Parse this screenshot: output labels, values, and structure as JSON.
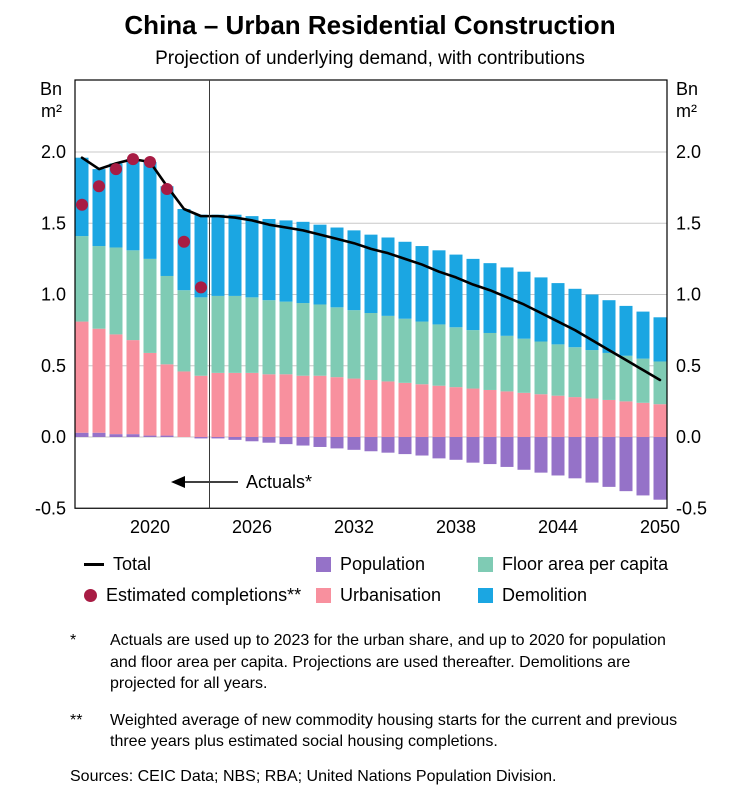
{
  "page": {
    "title": "China – Urban Residential Construction",
    "subtitle": "Projection of underlying demand, with contributions"
  },
  "axis": {
    "unit_line1": "Bn",
    "unit_line2": "m²"
  },
  "annotation": {
    "label": "Actuals*"
  },
  "legend": {
    "rows": [
      [
        {
          "type": "line",
          "color": "#000000",
          "label": "Total"
        },
        {
          "type": "square",
          "color": "#9572C8",
          "label": "Population"
        },
        {
          "type": "square",
          "color": "#7FCBB4",
          "label": "Floor area per capita"
        }
      ],
      [
        {
          "type": "dot",
          "color": "#A81C44",
          "label": "Estimated completions**"
        },
        {
          "type": "square",
          "color": "#F8909E",
          "label": "Urbanisation"
        },
        {
          "type": "square",
          "color": "#1BA6E2",
          "label": "Demolition"
        }
      ]
    ]
  },
  "footnotes": [
    {
      "marker": "*",
      "text": "Actuals are used up to 2023 for the urban share, and up to 2020 for population and floor area per capita. Projections are used thereafter. Demolitions are projected for all years."
    },
    {
      "marker": "**",
      "text": "Weighted average of new commodity housing starts for the current and previous three years plus estimated social housing completions."
    }
  ],
  "sources": "Sources: CEIC Data; NBS; RBA; United Nations Population Division.",
  "chart_data": {
    "type": "bar",
    "subtype": "stacked-bar-with-line-and-points",
    "title": "China – Urban Residential Construction",
    "subtitle": "Projection of underlying demand, with contributions",
    "ylabel": "Bn m²",
    "ylim": [
      -0.5,
      2.5
    ],
    "yticks": [
      -0.5,
      0.0,
      0.5,
      1.0,
      1.5,
      2.0
    ],
    "ytick_labels": [
      "-0.5",
      "0.0",
      "0.5",
      "1.0",
      "1.5",
      "2.0"
    ],
    "xticks": [
      2020,
      2026,
      2032,
      2038,
      2044,
      2050
    ],
    "divider_x": 2023.5,
    "grid": true,
    "legend_position": "bottom",
    "x": [
      2016,
      2017,
      2018,
      2019,
      2020,
      2021,
      2022,
      2023,
      2024,
      2025,
      2026,
      2027,
      2028,
      2029,
      2030,
      2031,
      2032,
      2033,
      2034,
      2035,
      2036,
      2037,
      2038,
      2039,
      2040,
      2041,
      2042,
      2043,
      2044,
      2045,
      2046,
      2047,
      2048,
      2049,
      2050
    ],
    "series": [
      {
        "name": "Population",
        "color": "#9572C8",
        "values": [
          0.03,
          0.03,
          0.02,
          0.02,
          0.01,
          0.01,
          0.0,
          -0.01,
          -0.01,
          -0.02,
          -0.03,
          -0.04,
          -0.05,
          -0.06,
          -0.07,
          -0.08,
          -0.09,
          -0.1,
          -0.11,
          -0.12,
          -0.13,
          -0.15,
          -0.16,
          -0.18,
          -0.19,
          -0.21,
          -0.23,
          -0.25,
          -0.27,
          -0.29,
          -0.32,
          -0.35,
          -0.38,
          -0.41,
          -0.44
        ]
      },
      {
        "name": "Urbanisation",
        "color": "#F8909E",
        "values": [
          0.78,
          0.73,
          0.7,
          0.66,
          0.58,
          0.5,
          0.46,
          0.43,
          0.45,
          0.45,
          0.45,
          0.44,
          0.44,
          0.43,
          0.43,
          0.42,
          0.41,
          0.4,
          0.39,
          0.38,
          0.37,
          0.36,
          0.35,
          0.34,
          0.33,
          0.32,
          0.31,
          0.3,
          0.29,
          0.28,
          0.27,
          0.26,
          0.25,
          0.24,
          0.23
        ]
      },
      {
        "name": "Floor area per capita",
        "color": "#7FCBB4",
        "values": [
          0.6,
          0.58,
          0.61,
          0.63,
          0.66,
          0.62,
          0.57,
          0.55,
          0.54,
          0.54,
          0.53,
          0.52,
          0.51,
          0.51,
          0.5,
          0.49,
          0.48,
          0.47,
          0.46,
          0.45,
          0.44,
          0.43,
          0.42,
          0.41,
          0.4,
          0.39,
          0.38,
          0.37,
          0.36,
          0.35,
          0.34,
          0.33,
          0.32,
          0.31,
          0.3
        ]
      },
      {
        "name": "Demolition",
        "color": "#1BA6E2",
        "values": [
          0.55,
          0.54,
          0.59,
          0.64,
          0.68,
          0.63,
          0.57,
          0.58,
          0.57,
          0.57,
          0.57,
          0.57,
          0.57,
          0.57,
          0.56,
          0.56,
          0.56,
          0.55,
          0.55,
          0.54,
          0.53,
          0.52,
          0.51,
          0.5,
          0.49,
          0.48,
          0.47,
          0.45,
          0.43,
          0.41,
          0.39,
          0.37,
          0.35,
          0.33,
          0.31
        ]
      }
    ],
    "line_series": {
      "name": "Total",
      "color": "#000000",
      "values": [
        1.96,
        1.88,
        1.92,
        1.95,
        1.93,
        1.76,
        1.6,
        1.55,
        1.55,
        1.54,
        1.52,
        1.49,
        1.47,
        1.45,
        1.42,
        1.39,
        1.36,
        1.32,
        1.29,
        1.25,
        1.21,
        1.16,
        1.12,
        1.07,
        1.03,
        0.98,
        0.93,
        0.87,
        0.81,
        0.75,
        0.68,
        0.61,
        0.54,
        0.47,
        0.4
      ]
    },
    "point_series": {
      "name": "Estimated completions**",
      "color": "#A81C44",
      "values": [
        1.63,
        1.76,
        1.88,
        1.95,
        1.93,
        1.74,
        1.37,
        1.05,
        null,
        null,
        null,
        null,
        null,
        null,
        null,
        null,
        null,
        null,
        null,
        null,
        null,
        null,
        null,
        null,
        null,
        null,
        null,
        null,
        null,
        null,
        null,
        null,
        null,
        null,
        null
      ]
    }
  }
}
